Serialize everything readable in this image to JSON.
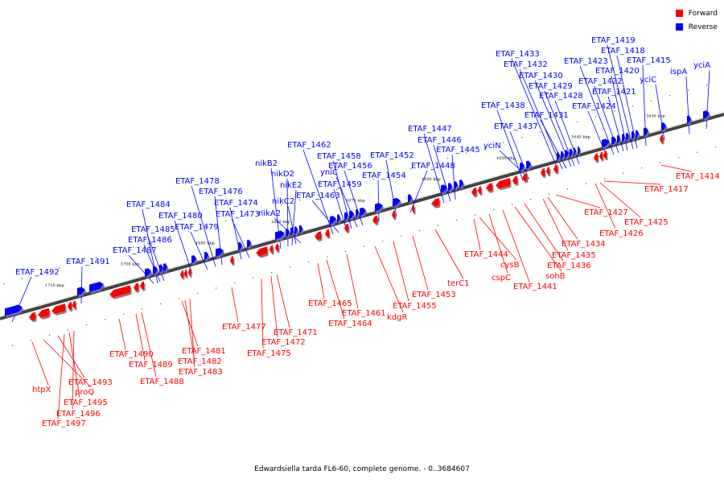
{
  "legend": {
    "forward_label": "Forward",
    "reverse_label": "Reverse",
    "forward_color": "#ff0000",
    "reverse_color": "#0000ff"
  },
  "caption": "Edwardsiella tarda FL6-60, complete genome. - 0..3684607",
  "ticks": [
    "1710 kbp",
    "1700 kbp",
    "1690 kbp",
    "1680 kbp",
    "1670 kbp",
    "1660 kbp",
    "1650 kbp",
    "1640 kbp",
    "1630 kbp"
  ],
  "reverse_genes": [
    "ETAF_1492",
    "ETAF_1491",
    "ETAF_1487",
    "ETAF_1486",
    "ETAF_1485",
    "ETAF_1484",
    "ETAF_1480",
    "ETAF_1479",
    "ETAF_1478",
    "ETAF_1476",
    "ETAF_1474",
    "ETAF_1473",
    "nikB2",
    "nikD2",
    "nikE2",
    "nikC2",
    "nikA2",
    "ETAF_1462",
    "ETAF_1463",
    "ETAF_1459",
    "ETAF_1458",
    "yniC",
    "ETAF_1456",
    "ETAF_1454",
    "ETAF_1452",
    "ETAF_1448",
    "ETAF_1447",
    "ETAF_1446",
    "ETAF_1445",
    "yciN",
    "ETAF_1438",
    "ETAF_1437",
    "ETAF_1433",
    "ETAF_1432",
    "ETAF_1431",
    "ETAF_1430",
    "ETAF_1429",
    "ETAF_1428",
    "ETAF_1424",
    "ETAF_1423",
    "ETAF_1422",
    "ETAF_1421",
    "ETAF_1420",
    "ETAF_1419",
    "ETAF_1418",
    "ETAF_1415",
    "yciC",
    "ispA",
    "yciA"
  ],
  "forward_genes": [
    "htpX",
    "proQ",
    "ETAF_1493",
    "ETAF_1495",
    "ETAF_1496",
    "ETAF_1497",
    "ETAF_1490",
    "ETAF_1489",
    "ETAF_1488",
    "ETAF_1481",
    "ETAF_1482",
    "ETAF_1483",
    "ETAF_1477",
    "ETAF_1475",
    "ETAF_1472",
    "ETAF_1471",
    "ETAF_1465",
    "ETAF_1464",
    "ETAF_1461",
    "kdgR",
    "ETAF_1455",
    "ETAF_1453",
    "terC1",
    "ETAF_1444",
    "cysB",
    "cspC",
    "ETAF_1441",
    "sohB",
    "ETAF_1436",
    "ETAF_1435",
    "ETAF_1434",
    "ETAF_1427",
    "ETAF_1426",
    "ETAF_1425",
    "ETAF_1417",
    "ETAF_1414"
  ]
}
